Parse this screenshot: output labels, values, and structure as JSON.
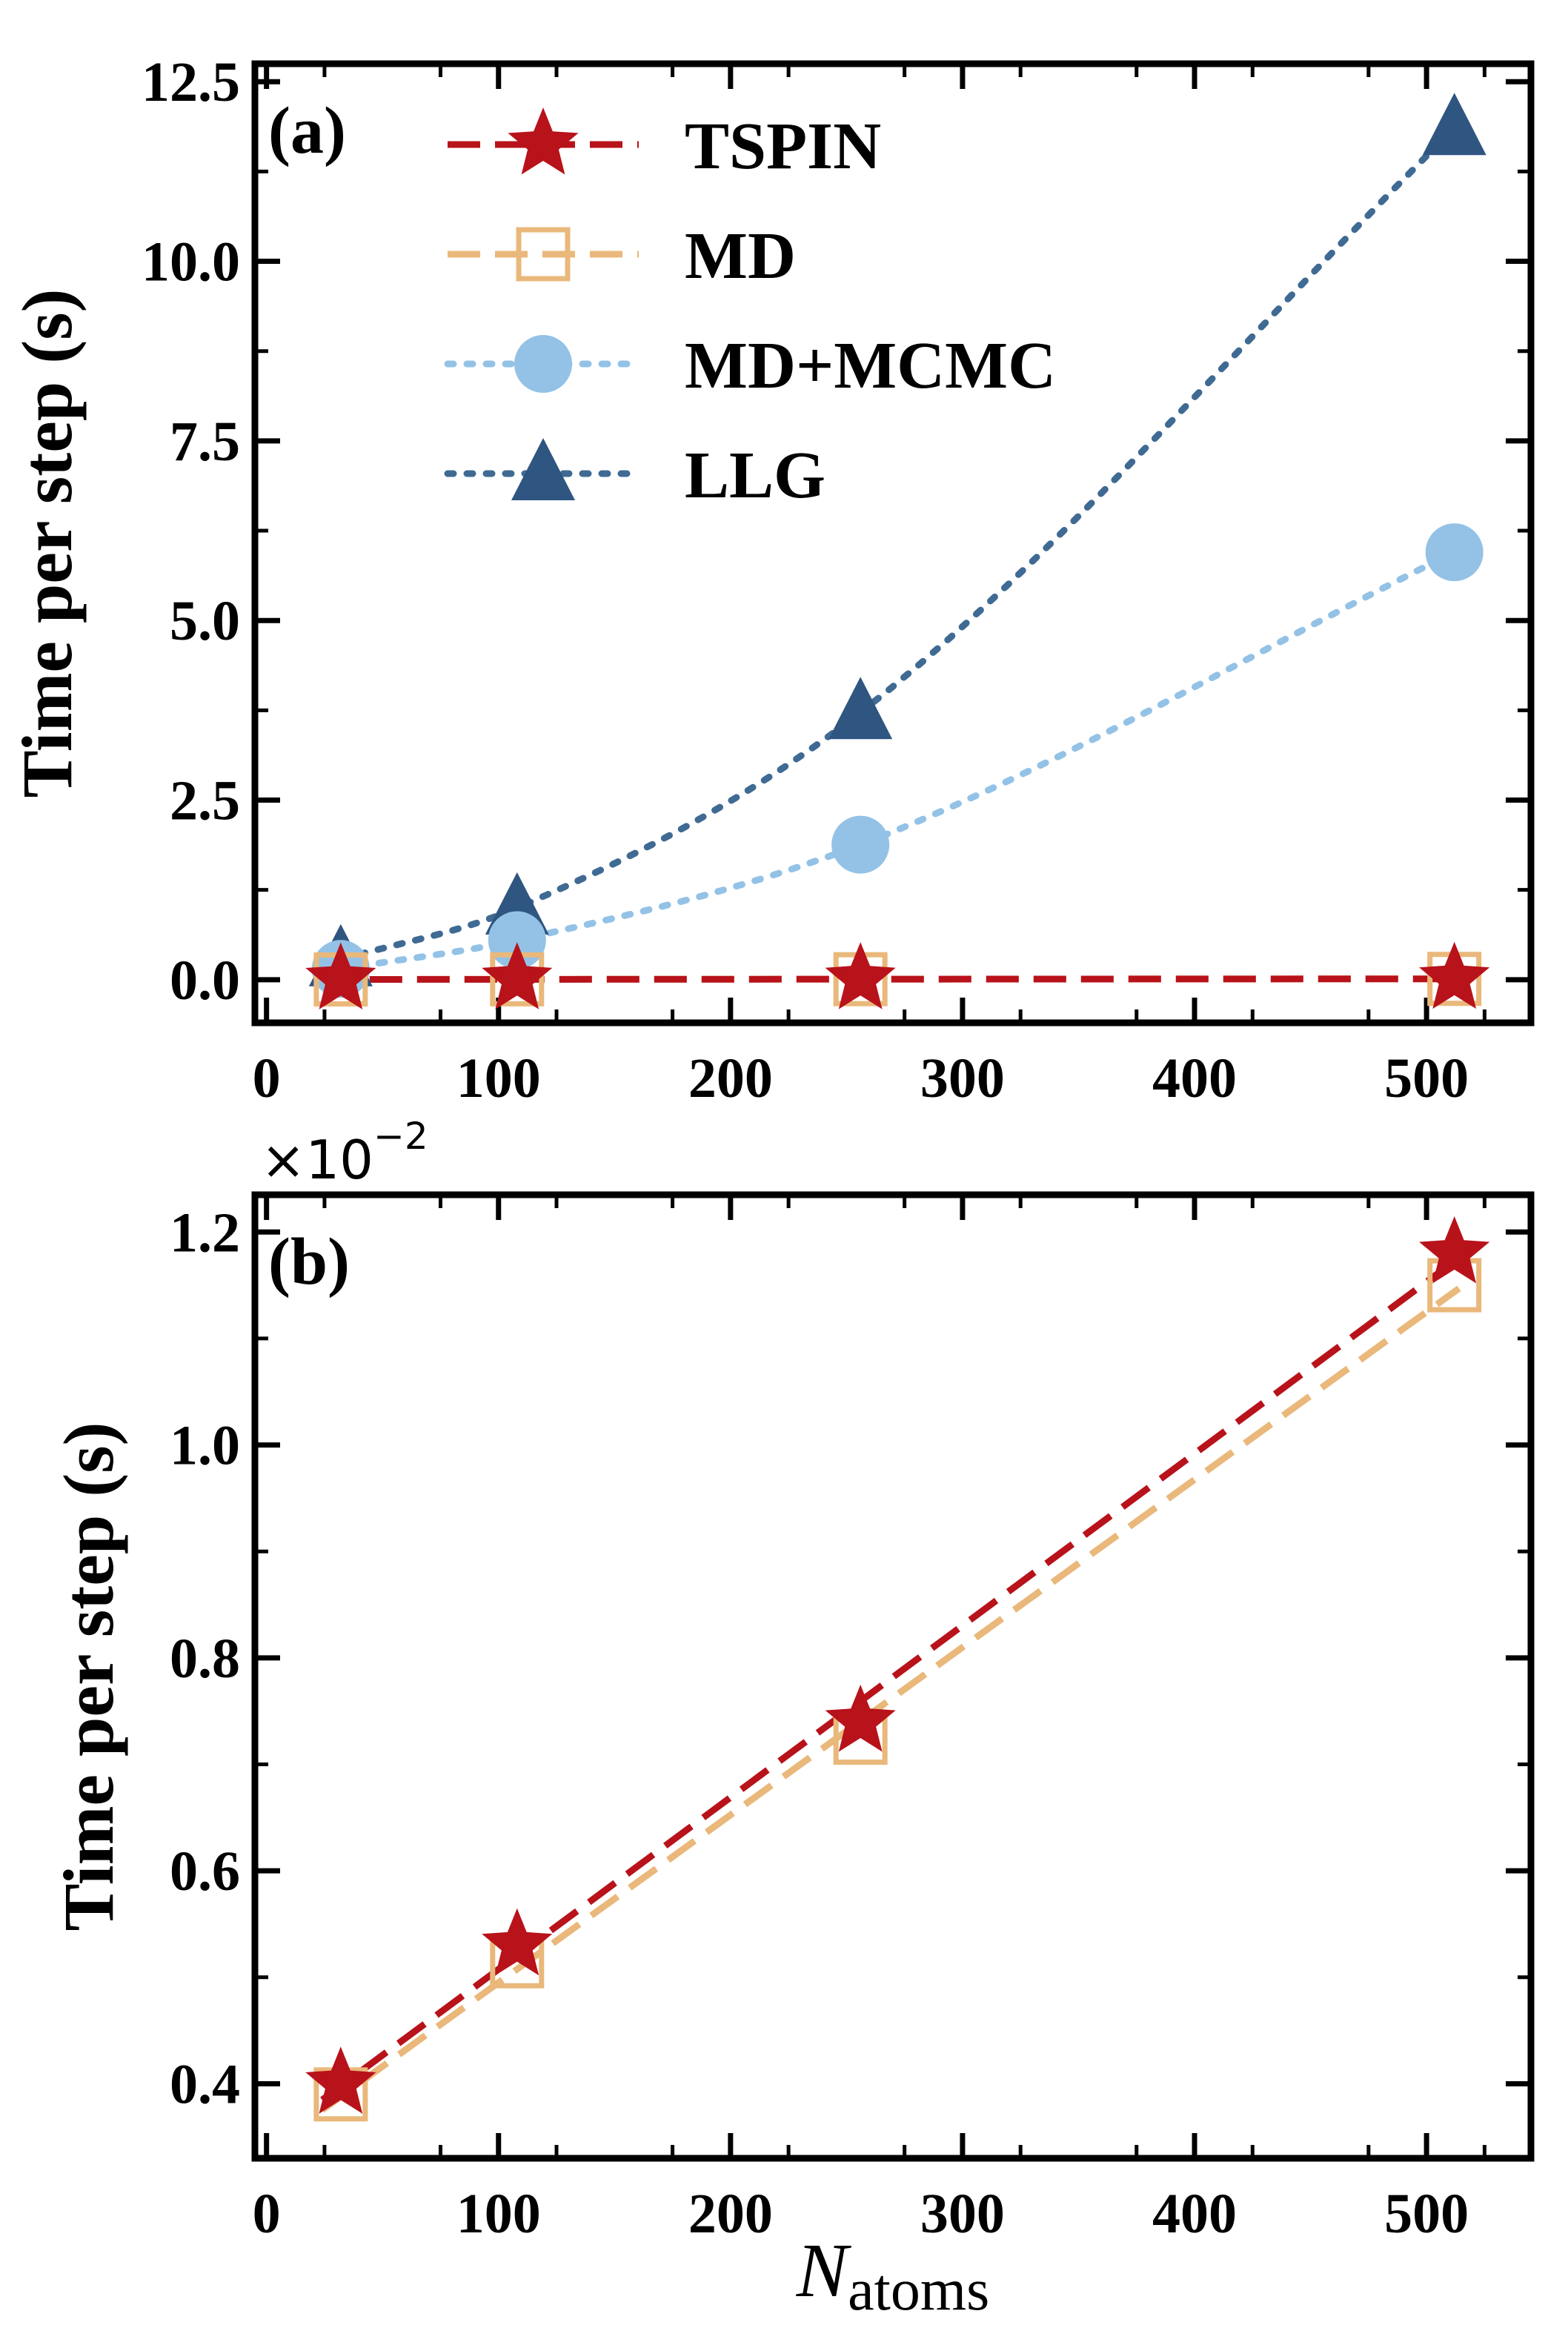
{
  "colors": {
    "tspin": "#b8121a",
    "md": "#e9b87a",
    "mdmcmc": "#93c2e6",
    "llg": "#2f5581",
    "llg_line": "#3f6a93"
  },
  "chart_data": [
    {
      "type": "line",
      "panel_label": "(a)",
      "ylabel": "Time per step (s)",
      "xlabel": "",
      "xlim": [
        -5,
        545
      ],
      "ylim": [
        -0.6,
        12.75
      ],
      "xticks": [
        "0",
        "100",
        "200",
        "300",
        "400",
        "500"
      ],
      "yticks": [
        "0.0",
        "2.5",
        "5.0",
        "7.5",
        "10.0",
        "12.5"
      ],
      "x": [
        32,
        108,
        256,
        512
      ],
      "series": [
        {
          "name": "TSPIN",
          "marker": "star",
          "line": "dashed",
          "values": [
            0.004,
            0.0053,
            0.0074,
            0.0118
          ]
        },
        {
          "name": "MD",
          "marker": "square-open",
          "line": "dashed",
          "values": [
            0.0039,
            0.0052,
            0.0072,
            0.0115
          ]
        },
        {
          "name": "MD+MCMC",
          "marker": "circle",
          "line": "dotted",
          "values": [
            0.15,
            0.55,
            1.88,
            5.95
          ]
        },
        {
          "name": "LLG",
          "marker": "triangle",
          "line": "dotted",
          "values": [
            0.28,
            1.0,
            3.72,
            11.85
          ]
        }
      ]
    },
    {
      "type": "line",
      "panel_label": "(b)",
      "ylabel": "Time per step (s)",
      "xlabel": "N",
      "xlabel_sub": "atoms",
      "offset_base": "×10",
      "offset_exp": "−2",
      "xlim": [
        -5,
        545
      ],
      "ylim": [
        0.33,
        1.235
      ],
      "xticks": [
        "0",
        "100",
        "200",
        "300",
        "400",
        "500"
      ],
      "yticks": [
        "0.4",
        "0.6",
        "0.8",
        "1.0",
        "1.2"
      ],
      "x": [
        32,
        108,
        256,
        512
      ],
      "series": [
        {
          "name": "TSPIN",
          "marker": "star",
          "line": "dashed",
          "values": [
            0.4,
            0.53,
            0.74,
            1.18
          ]
        },
        {
          "name": "MD",
          "marker": "square-open",
          "line": "dashed",
          "values": [
            0.39,
            0.515,
            0.725,
            1.15
          ]
        }
      ]
    }
  ]
}
